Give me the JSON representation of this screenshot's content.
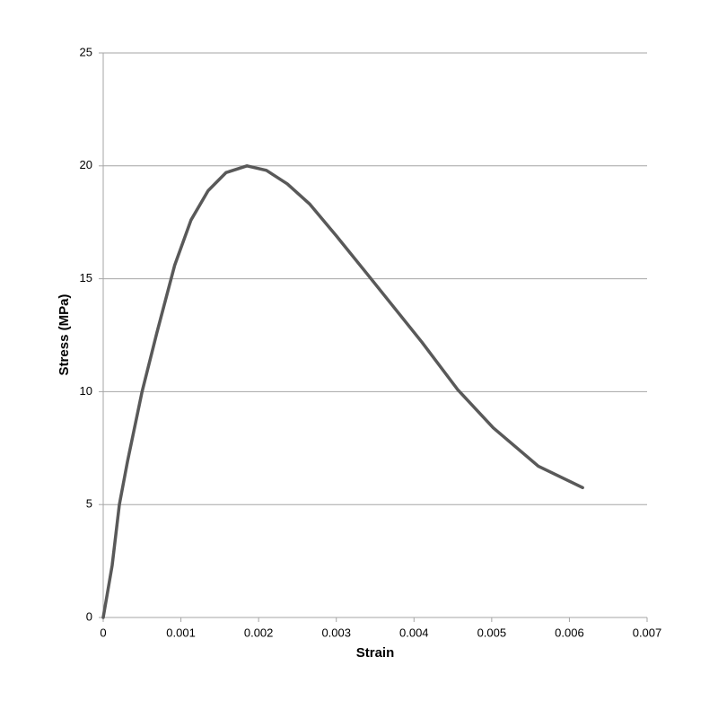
{
  "chart_data": {
    "type": "line",
    "xlabel": "Strain",
    "ylabel": "Stress (MPa)",
    "x": [
      0,
      0.000115,
      0.000208,
      0.000312,
      0.0005,
      0.00069,
      0.00092,
      0.00113,
      0.00135,
      0.00158,
      0.00185,
      0.0021,
      0.00237,
      0.00266,
      0.003,
      0.0034,
      0.00375,
      0.0041,
      0.00456,
      0.00502,
      0.0056,
      0.00617
    ],
    "series": [
      {
        "color": "#595959",
        "values": [
          0,
          2.3,
          5.0,
          6.9,
          10.0,
          12.6,
          15.6,
          17.6,
          18.9,
          19.7,
          20.0,
          19.8,
          19.2,
          18.3,
          16.9,
          15.2,
          13.7,
          12.2,
          10.1,
          8.4,
          6.7,
          5.75
        ]
      }
    ],
    "xlim": [
      0,
      0.007
    ],
    "xticks": [
      0,
      0.001,
      0.002,
      0.003,
      0.004,
      0.005,
      0.006,
      0.007
    ],
    "ylim": [
      0,
      25
    ],
    "yticks": [
      0,
      5,
      10,
      15,
      20,
      25
    ],
    "grid": true
  }
}
